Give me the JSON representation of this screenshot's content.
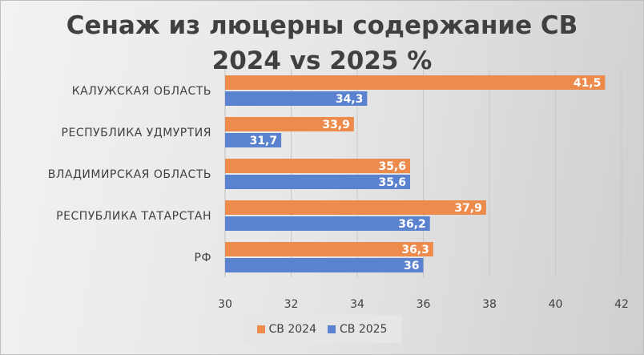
{
  "chart_data": {
    "type": "bar",
    "orientation": "horizontal",
    "title_lines": [
      "Сенаж из люцерны содержание СВ",
      "2024 vs 2025 %"
    ],
    "categories": [
      "КАЛУЖСКАЯ ОБЛАСТЬ",
      "РЕСПУБЛИКА УДМУРТИЯ",
      "ВЛАДИМИРСКАЯ ОБЛАСТЬ",
      "РЕСПУБЛИКА ТАТАРСТАН",
      "РФ"
    ],
    "series": [
      {
        "name": "СВ 2024",
        "color": "#ed8b4c",
        "values": [
          41.5,
          33.9,
          35.6,
          37.9,
          36.3
        ],
        "labels": [
          "41,5",
          "33,9",
          "35,6",
          "37,9",
          "36,3"
        ]
      },
      {
        "name": "СВ 2025",
        "color": "#5b82cf",
        "values": [
          34.3,
          31.7,
          35.6,
          36.2,
          36
        ],
        "labels": [
          "34,3",
          "31,7",
          "35,6",
          "36,2",
          "36"
        ]
      }
    ],
    "xlim": [
      30,
      42
    ],
    "xticks": [
      30,
      32,
      34,
      36,
      38,
      40,
      42
    ],
    "grid": true,
    "legend": "bottom"
  }
}
